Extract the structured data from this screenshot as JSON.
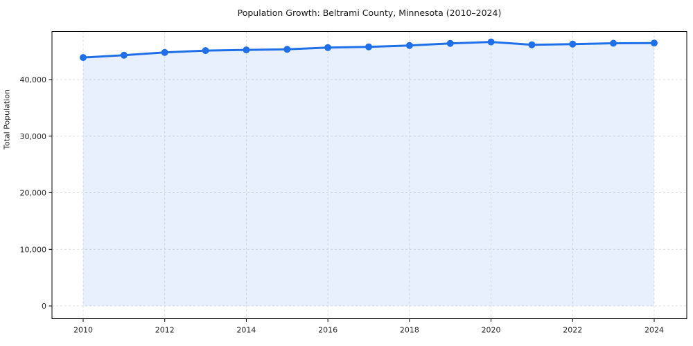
{
  "chart_data": {
    "type": "line",
    "title": "Population Growth: Beltrami County, Minnesota (2010–2024)",
    "xlabel": "",
    "ylabel": "Total Population",
    "x": [
      2010,
      2011,
      2012,
      2013,
      2014,
      2015,
      2016,
      2017,
      2018,
      2019,
      2020,
      2021,
      2022,
      2023,
      2024
    ],
    "series": [
      {
        "name": "Total Population",
        "values": [
          43900,
          44300,
          44800,
          45130,
          45250,
          45350,
          45650,
          45780,
          46030,
          46400,
          46650,
          46150,
          46280,
          46420,
          46460
        ]
      }
    ],
    "ylim": [
      -2250,
      48500
    ],
    "y_ticks": [
      {
        "value": 0,
        "label": "0"
      },
      {
        "value": 10000,
        "label": "10,000"
      },
      {
        "value": 20000,
        "label": "20,000"
      },
      {
        "value": 30000,
        "label": "30,000"
      },
      {
        "value": 40000,
        "label": "40,000"
      }
    ],
    "x_ticks": [
      {
        "value": 2010,
        "label": "2010"
      },
      {
        "value": 2012,
        "label": "2012"
      },
      {
        "value": 2014,
        "label": "2014"
      },
      {
        "value": 2016,
        "label": "2016"
      },
      {
        "value": 2018,
        "label": "2018"
      },
      {
        "value": 2020,
        "label": "2020"
      },
      {
        "value": 2022,
        "label": "2022"
      },
      {
        "value": 2024,
        "label": "2024"
      }
    ],
    "grid": true,
    "legend": "none",
    "colors": {
      "line": "#1f6fe8",
      "marker": "#1f6fe8",
      "area_fill": "rgba(31,111,232,0.10)",
      "gridline": "#dcdcdc",
      "spine": "#000000",
      "text": "#262626"
    }
  }
}
